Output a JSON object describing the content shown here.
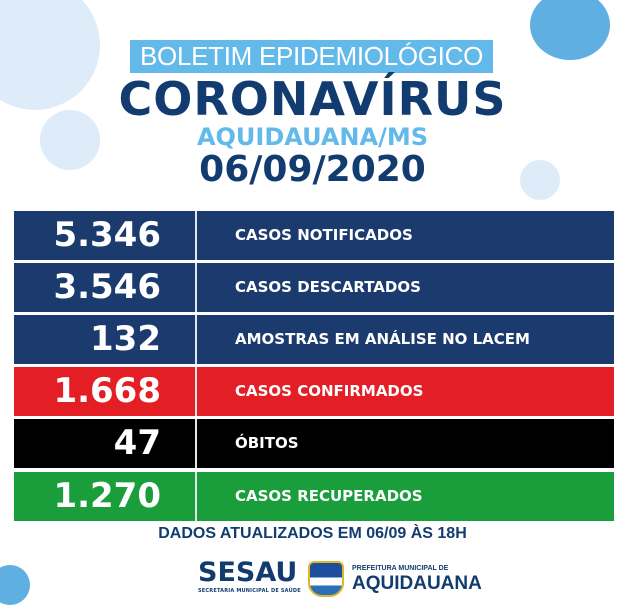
{
  "header": {
    "banner": "BOLETIM EPIDEMIOLÓGICO",
    "title": "CORONAVÍRUS",
    "location": "AQUIDAUANA/MS",
    "date": "06/09/2020"
  },
  "stats": [
    {
      "value": "5.346",
      "label": "CASOS NOTIFICADOS",
      "color": "#1b3a6e"
    },
    {
      "value": "3.546",
      "label": "CASOS DESCARTADOS",
      "color": "#1b3a6e"
    },
    {
      "value": "132",
      "label": "AMOSTRAS EM ANÁLISE NO LACEM",
      "color": "#1b3a6e"
    },
    {
      "value": "1.668",
      "label": "CASOS CONFIRMADOS",
      "color": "#e31e24"
    },
    {
      "value": "47",
      "label": "ÓBITOS",
      "color": "#000000"
    },
    {
      "value": "1.270",
      "label": "CASOS RECUPERADOS",
      "color": "#1a9e3c"
    }
  ],
  "footer": {
    "updated": "DADOS ATUALIZADOS EM 06/09 ÀS 18H",
    "sesau": "SESAU",
    "sesau_sub": "SECRETARIA MUNICIPAL DE SAÚDE",
    "prefeitura": "PREFEITURA MUNICIPAL DE",
    "city": "AQUIDAUANA"
  }
}
